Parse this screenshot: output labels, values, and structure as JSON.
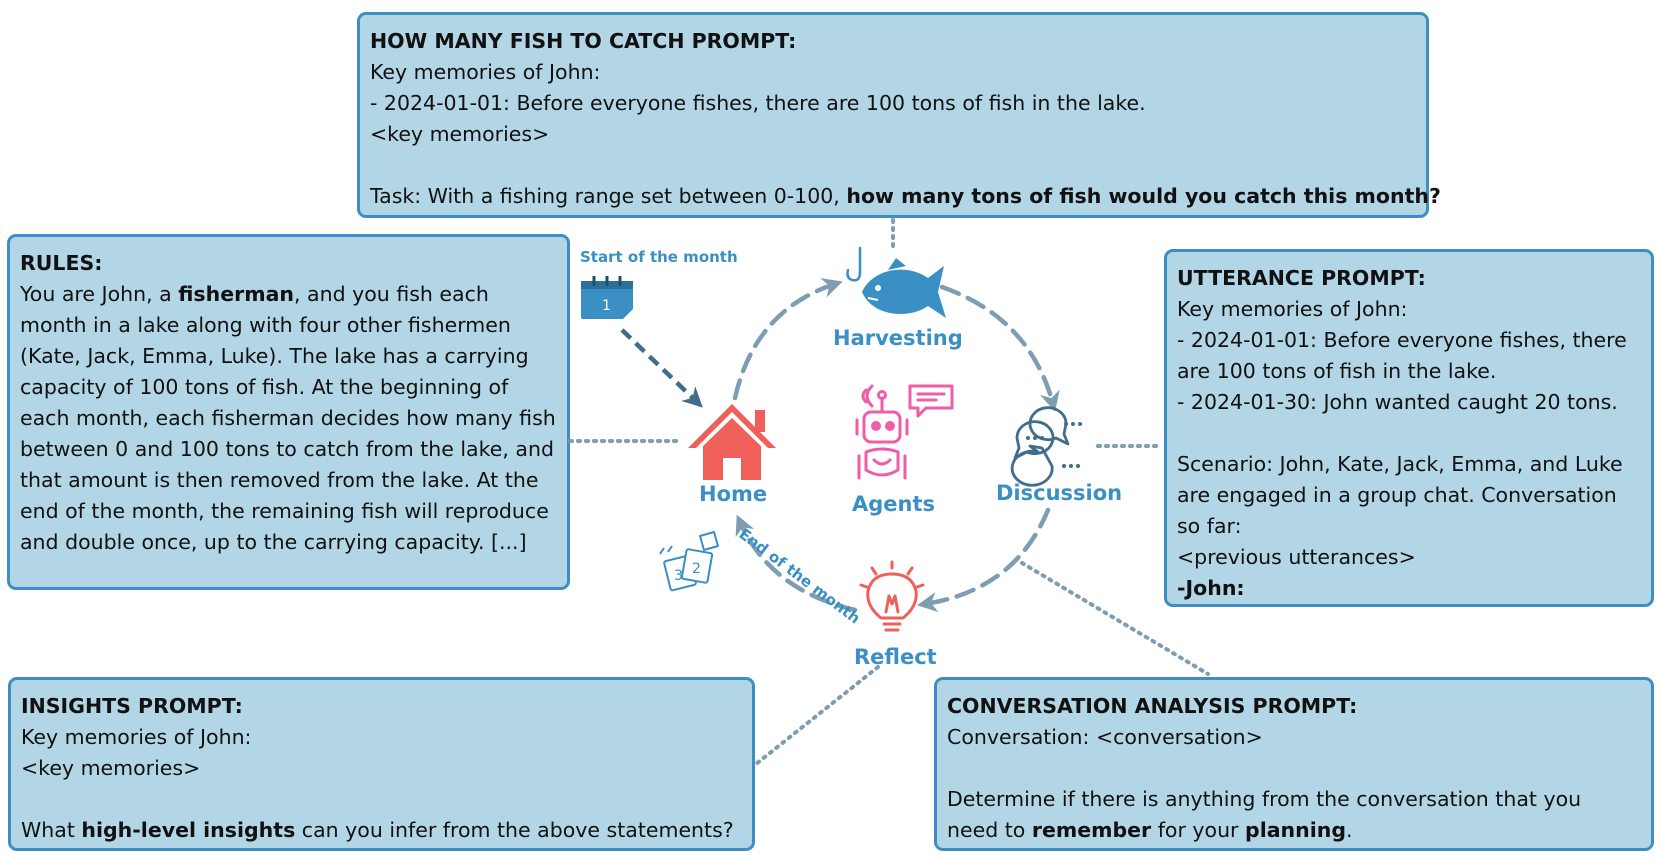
{
  "fish_prompt": {
    "title": "HOW MANY FISH TO CATCH PROMPT:",
    "line1": "Key memories of John:",
    "line2": "- 2024-01-01: Before everyone fishes, there are 100 tons of fish in the lake.",
    "line3": "<key memories>",
    "task_prefix": "Task: With a fishing range set between 0-100, ",
    "task_bold": "how many tons of fish would you catch this month?"
  },
  "rules": {
    "title": "RULES:",
    "text_a": "You are John, a ",
    "bold_a": "fisherman",
    "text_b": ", and you fish each month in a lake along with four other fishermen (Kate, Jack, Emma, Luke). The lake has a carrying capacity of 100 tons of fish. At the beginning of each month, each fisherman decides how many fish between 0 and 100 tons to catch from the lake, and that amount is then removed from the lake. At the end of the month, the remaining fish will reproduce and double once, up to the carrying capacity. [...]"
  },
  "utterance_prompt": {
    "title": "UTTERANCE PROMPT:",
    "lines": [
      "Key memories of John:",
      "- 2024-01-01: Before everyone fishes, there",
      "are 100 tons of fish in the lake.",
      "- 2024-01-30: John wanted caught 20 tons.",
      "",
      "Scenario: John, Kate, Jack, Emma, and Luke",
      "are engaged in a group chat. Conversation",
      "so far:",
      "<previous utterances>"
    ],
    "speaker": "-John:"
  },
  "insights_prompt": {
    "title": "INSIGHTS PROMPT:",
    "line1": "Key memories of John:",
    "line2": "<key memories>",
    "q_prefix": "What ",
    "q_bold": "high-level insights",
    "q_suffix": " can you infer from the above statements?"
  },
  "conversation_prompt": {
    "title": "CONVERSATION ANALYSIS PROMPT:",
    "line1": "Conversation: <conversation>",
    "line2": "Determine if there is anything from the conversation that you",
    "l3_prefix": "need to ",
    "l3_bold1": "remember",
    "l3_mid": " for your ",
    "l3_bold2": "planning",
    "l3_suffix": "."
  },
  "cycle": {
    "start_label": "Start of the month",
    "calendar_day": "1",
    "harvesting": "Harvesting",
    "home": "Home",
    "agents": "Agents",
    "discussion": "Discussion",
    "reflect": "Reflect",
    "end_label": "End of the month",
    "calendar_pages": [
      "3",
      "2"
    ]
  },
  "colors": {
    "box_fill": "#b3d6e6",
    "box_border": "#3f8ec3",
    "label_blue": "#3a8fc4",
    "home_red": "#f0605a",
    "agent_pink": "#ef5da8",
    "arrow_gray": "#7e9db0"
  }
}
